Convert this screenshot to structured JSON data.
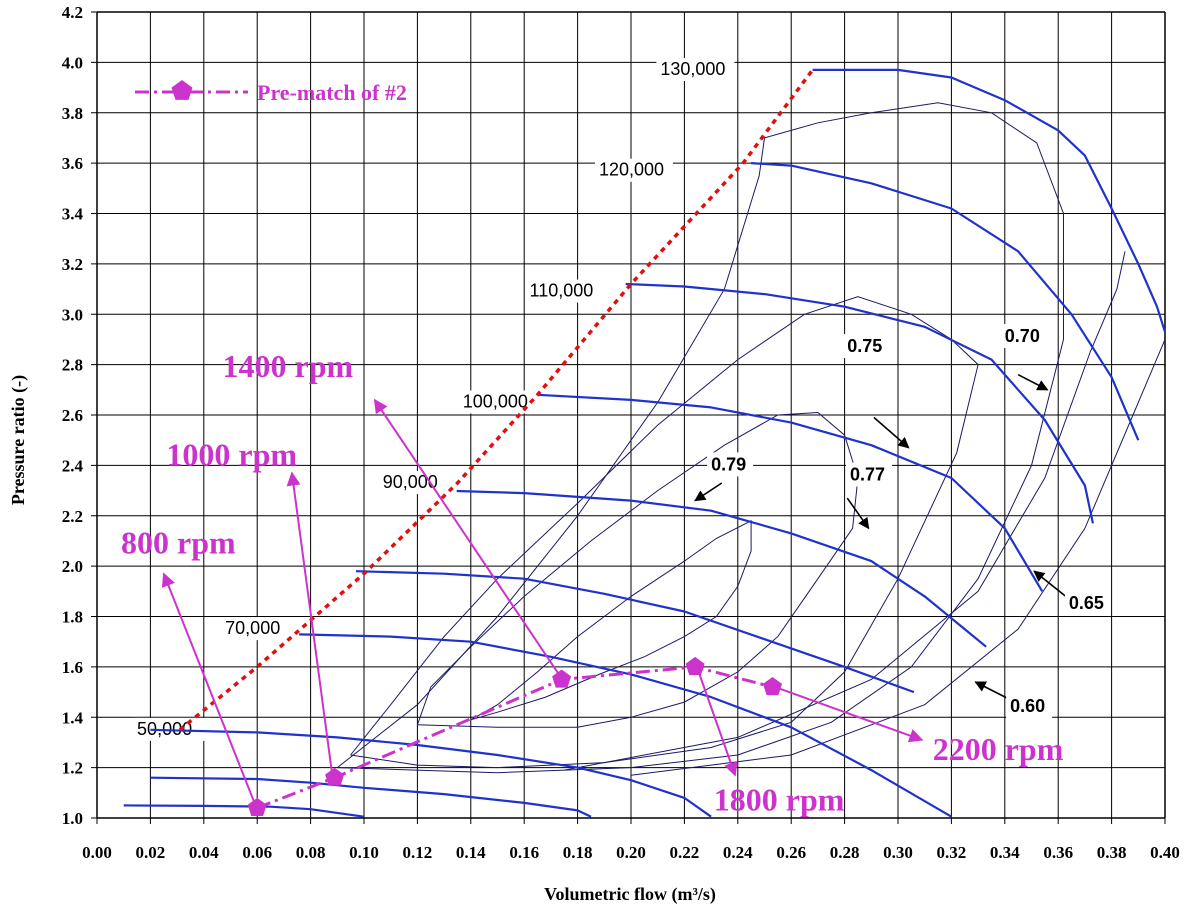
{
  "chart_data": {
    "type": "line",
    "title": "",
    "xlabel": "Volumetric flow (m³/s)",
    "ylabel": "Pressure ratio (-)",
    "xlim": [
      0.0,
      0.4
    ],
    "ylim": [
      1.0,
      4.2
    ],
    "x_ticks": [
      "0.00",
      "0.02",
      "0.04",
      "0.06",
      "0.08",
      "0.10",
      "0.12",
      "0.14",
      "0.16",
      "0.18",
      "0.20",
      "0.22",
      "0.24",
      "0.26",
      "0.28",
      "0.30",
      "0.32",
      "0.34",
      "0.36",
      "0.38",
      "0.40"
    ],
    "y_ticks": [
      "1.0",
      "1.2",
      "1.4",
      "1.6",
      "1.8",
      "2.0",
      "2.2",
      "2.4",
      "2.6",
      "2.8",
      "3.0",
      "3.2",
      "3.4",
      "3.6",
      "3.8",
      "4.0",
      "4.2"
    ],
    "grid": true,
    "colors": {
      "speed_lines": "#1f33cc",
      "efficiency": "#1a1a66",
      "surge": "#e01010",
      "prematch": "#cc33cc"
    },
    "speed_lines": [
      {
        "label": "50,000",
        "label_x": 0.015,
        "label_y": 1.33,
        "points": [
          [
            0.01,
            1.05
          ],
          [
            0.04,
            1.048
          ],
          [
            0.065,
            1.045
          ],
          [
            0.08,
            1.035
          ],
          [
            0.1,
            1.005
          ]
        ]
      },
      {
        "label": "",
        "label_x": null,
        "label_y": null,
        "points": [
          [
            0.02,
            1.16
          ],
          [
            0.06,
            1.155
          ],
          [
            0.08,
            1.14
          ],
          [
            0.1,
            1.12
          ],
          [
            0.13,
            1.095
          ],
          [
            0.16,
            1.06
          ],
          [
            0.18,
            1.03
          ],
          [
            0.185,
            1.005
          ]
        ]
      },
      {
        "label": "",
        "label_x": null,
        "label_y": null,
        "points": [
          [
            0.02,
            1.35
          ],
          [
            0.06,
            1.34
          ],
          [
            0.09,
            1.32
          ],
          [
            0.12,
            1.29
          ],
          [
            0.15,
            1.25
          ],
          [
            0.18,
            1.2
          ],
          [
            0.2,
            1.15
          ],
          [
            0.22,
            1.08
          ],
          [
            0.23,
            1.005
          ]
        ]
      },
      {
        "label": "70,000",
        "label_x": 0.048,
        "label_y": 1.73,
        "points": [
          [
            0.072,
            1.73
          ],
          [
            0.11,
            1.72
          ],
          [
            0.14,
            1.7
          ],
          [
            0.17,
            1.64
          ],
          [
            0.2,
            1.57
          ],
          [
            0.23,
            1.48
          ],
          [
            0.26,
            1.36
          ],
          [
            0.29,
            1.19
          ],
          [
            0.32,
            1.005
          ]
        ]
      },
      {
        "label": "",
        "label_x": null,
        "label_y": null,
        "points": [
          [
            0.097,
            1.98
          ],
          [
            0.13,
            1.97
          ],
          [
            0.16,
            1.95
          ],
          [
            0.19,
            1.89
          ],
          [
            0.22,
            1.82
          ],
          [
            0.25,
            1.71
          ],
          [
            0.28,
            1.6
          ],
          [
            0.306,
            1.5
          ]
        ]
      },
      {
        "label": "90,000",
        "label_x": 0.107,
        "label_y": 2.31,
        "points": [
          [
            0.13,
            2.3
          ],
          [
            0.16,
            2.29
          ],
          [
            0.2,
            2.26
          ],
          [
            0.23,
            2.22
          ],
          [
            0.26,
            2.13
          ],
          [
            0.29,
            2.02
          ],
          [
            0.31,
            1.88
          ],
          [
            0.333,
            1.68
          ]
        ]
      },
      {
        "label": "100,000",
        "label_x": 0.137,
        "label_y": 2.63,
        "points": [
          [
            0.165,
            2.68
          ],
          [
            0.2,
            2.66
          ],
          [
            0.23,
            2.63
          ],
          [
            0.26,
            2.57
          ],
          [
            0.29,
            2.48
          ],
          [
            0.32,
            2.35
          ],
          [
            0.34,
            2.15
          ],
          [
            0.354,
            1.9
          ]
        ]
      },
      {
        "label": "110,000",
        "label_x": 0.162,
        "label_y": 3.07,
        "points": [
          [
            0.198,
            3.12
          ],
          [
            0.22,
            3.11
          ],
          [
            0.25,
            3.08
          ],
          [
            0.28,
            3.03
          ],
          [
            0.31,
            2.95
          ],
          [
            0.335,
            2.82
          ],
          [
            0.355,
            2.58
          ],
          [
            0.37,
            2.32
          ],
          [
            0.373,
            2.17
          ]
        ]
      },
      {
        "label": "120,000",
        "label_x": 0.188,
        "label_y": 3.55,
        "points": [
          [
            0.245,
            3.6
          ],
          [
            0.26,
            3.59
          ],
          [
            0.29,
            3.52
          ],
          [
            0.32,
            3.42
          ],
          [
            0.345,
            3.25
          ],
          [
            0.365,
            3.0
          ],
          [
            0.38,
            2.75
          ],
          [
            0.39,
            2.5
          ]
        ]
      },
      {
        "label": "130,000",
        "label_x": 0.211,
        "label_y": 3.95,
        "points": [
          [
            0.268,
            3.97
          ],
          [
            0.3,
            3.97
          ],
          [
            0.32,
            3.94
          ],
          [
            0.34,
            3.85
          ],
          [
            0.36,
            3.73
          ],
          [
            0.37,
            3.63
          ],
          [
            0.38,
            3.42
          ],
          [
            0.39,
            3.2
          ],
          [
            0.397,
            3.03
          ],
          [
            0.4,
            2.93
          ]
        ]
      }
    ],
    "efficiency_islands": [
      {
        "label": "0.79",
        "points": [
          [
            0.14,
            1.39
          ],
          [
            0.15,
            1.45
          ],
          [
            0.165,
            1.58
          ],
          [
            0.18,
            1.72
          ],
          [
            0.2,
            1.88
          ],
          [
            0.22,
            2.02
          ],
          [
            0.232,
            2.11
          ],
          [
            0.245,
            2.18
          ],
          [
            0.245,
            2.06
          ],
          [
            0.24,
            1.92
          ],
          [
            0.232,
            1.8
          ],
          [
            0.22,
            1.72
          ],
          [
            0.205,
            1.64
          ],
          [
            0.188,
            1.57
          ],
          [
            0.168,
            1.48
          ],
          [
            0.15,
            1.42
          ],
          [
            0.14,
            1.39
          ]
        ]
      },
      {
        "label": "0.77",
        "points": [
          [
            0.12,
            1.37
          ],
          [
            0.125,
            1.52
          ],
          [
            0.14,
            1.68
          ],
          [
            0.16,
            1.88
          ],
          [
            0.185,
            2.1
          ],
          [
            0.21,
            2.3
          ],
          [
            0.235,
            2.48
          ],
          [
            0.255,
            2.6
          ],
          [
            0.27,
            2.61
          ],
          [
            0.28,
            2.52
          ],
          [
            0.285,
            2.35
          ],
          [
            0.283,
            2.15
          ],
          [
            0.27,
            1.95
          ],
          [
            0.255,
            1.72
          ],
          [
            0.24,
            1.58
          ],
          [
            0.22,
            1.46
          ],
          [
            0.2,
            1.4
          ],
          [
            0.18,
            1.36
          ],
          [
            0.15,
            1.36
          ],
          [
            0.12,
            1.37
          ]
        ]
      },
      {
        "label": "0.75",
        "points": [
          [
            0.095,
            1.25
          ],
          [
            0.11,
            1.45
          ],
          [
            0.13,
            1.72
          ],
          [
            0.15,
            1.95
          ],
          [
            0.18,
            2.25
          ],
          [
            0.21,
            2.56
          ],
          [
            0.24,
            2.82
          ],
          [
            0.265,
            3.0
          ],
          [
            0.285,
            3.07
          ],
          [
            0.305,
            3.0
          ],
          [
            0.32,
            2.9
          ],
          [
            0.33,
            2.8
          ],
          [
            0.322,
            2.45
          ],
          [
            0.3,
            1.95
          ],
          [
            0.28,
            1.58
          ],
          [
            0.26,
            1.38
          ],
          [
            0.23,
            1.28
          ],
          [
            0.19,
            1.22
          ],
          [
            0.15,
            1.2
          ],
          [
            0.12,
            1.21
          ],
          [
            0.095,
            1.25
          ]
        ]
      },
      {
        "label": "0.70",
        "points": [
          [
            0.09,
            1.2
          ],
          [
            0.12,
            1.45
          ],
          [
            0.15,
            1.8
          ],
          [
            0.18,
            2.2
          ],
          [
            0.21,
            2.65
          ],
          [
            0.235,
            3.1
          ],
          [
            0.248,
            3.55
          ],
          [
            0.25,
            3.7
          ],
          [
            0.27,
            3.76
          ],
          [
            0.29,
            3.8
          ],
          [
            0.315,
            3.84
          ],
          [
            0.335,
            3.8
          ],
          [
            0.352,
            3.68
          ],
          [
            0.362,
            3.4
          ],
          [
            0.362,
            2.9
          ],
          [
            0.35,
            2.4
          ],
          [
            0.33,
            1.95
          ],
          [
            0.305,
            1.6
          ],
          [
            0.275,
            1.38
          ],
          [
            0.24,
            1.25
          ],
          [
            0.2,
            1.2
          ],
          [
            0.15,
            1.18
          ],
          [
            0.09,
            1.2
          ]
        ]
      },
      {
        "label": "0.65",
        "points": [
          [
            0.175,
            1.19
          ],
          [
            0.24,
            1.32
          ],
          [
            0.29,
            1.55
          ],
          [
            0.33,
            1.9
          ],
          [
            0.355,
            2.35
          ],
          [
            0.372,
            2.85
          ],
          [
            0.382,
            3.1
          ],
          [
            0.385,
            3.25
          ]
        ]
      },
      {
        "label": "0.60",
        "points": [
          [
            0.2,
            1.17
          ],
          [
            0.26,
            1.25
          ],
          [
            0.31,
            1.45
          ],
          [
            0.345,
            1.75
          ],
          [
            0.37,
            2.15
          ],
          [
            0.388,
            2.6
          ],
          [
            0.4,
            2.9
          ]
        ]
      }
    ],
    "efficiency_labels": [
      {
        "label": "0.79",
        "x": 0.23,
        "y": 2.38
      },
      {
        "label": "0.77",
        "x": 0.282,
        "y": 2.34
      },
      {
        "label": "0.75",
        "x": 0.281,
        "y": 2.85
      },
      {
        "label": "0.70",
        "x": 0.34,
        "y": 2.89
      },
      {
        "label": "0.65",
        "x": 0.364,
        "y": 1.83
      },
      {
        "label": "0.60",
        "x": 0.342,
        "y": 1.42
      }
    ],
    "efficiency_arrows": [
      {
        "from": [
          0.345,
          2.76
        ],
        "to": [
          0.356,
          2.7
        ]
      },
      {
        "from": [
          0.291,
          2.59
        ],
        "to": [
          0.304,
          2.47
        ]
      },
      {
        "from": [
          0.234,
          2.33
        ],
        "to": [
          0.224,
          2.26
        ]
      },
      {
        "from": [
          0.281,
          2.27
        ],
        "to": [
          0.289,
          2.15
        ]
      },
      {
        "from": [
          0.364,
          1.87
        ],
        "to": [
          0.351,
          1.98
        ]
      },
      {
        "from": [
          0.342,
          1.47
        ],
        "to": [
          0.329,
          1.54
        ]
      }
    ],
    "surge_line": {
      "name": "surge",
      "points": [
        [
          0.031,
          1.35
        ],
        [
          0.06,
          1.6
        ],
        [
          0.1,
          1.97
        ],
        [
          0.135,
          2.33
        ],
        [
          0.165,
          2.68
        ],
        [
          0.2,
          3.12
        ],
        [
          0.242,
          3.6
        ],
        [
          0.268,
          3.97
        ]
      ]
    },
    "prematch": {
      "name": "Pre-match of #2",
      "points": [
        [
          0.06,
          1.04
        ],
        [
          0.089,
          1.16
        ],
        [
          0.174,
          1.55
        ],
        [
          0.224,
          1.6
        ],
        [
          0.253,
          1.52
        ]
      ]
    },
    "rpm_annotations": [
      {
        "label": "800 rpm",
        "text_x": 0.009,
        "text_y": 2.05,
        "tail": [
          0.059,
          1.06
        ],
        "head": [
          0.025,
          1.97
        ]
      },
      {
        "label": "1000 rpm",
        "text_x": 0.026,
        "text_y": 2.4,
        "tail": [
          0.088,
          1.18
        ],
        "head": [
          0.073,
          2.37
        ]
      },
      {
        "label": "1400 rpm",
        "text_x": 0.047,
        "text_y": 2.75,
        "tail": [
          0.173,
          1.57
        ],
        "head": [
          0.104,
          2.66
        ]
      },
      {
        "label": "1800 rpm",
        "text_x": 0.231,
        "text_y": 1.03,
        "tail": [
          0.225,
          1.59
        ],
        "head": [
          0.239,
          1.17
        ]
      },
      {
        "label": "2200 rpm",
        "text_x": 0.313,
        "text_y": 1.23,
        "tail": [
          0.254,
          1.52
        ],
        "head": [
          0.309,
          1.31
        ]
      }
    ]
  }
}
